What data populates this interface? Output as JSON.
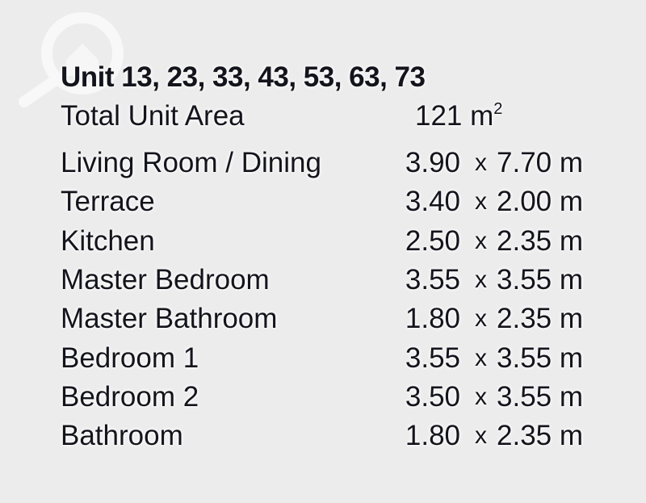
{
  "watermark_icon": "magnifier-house-icon",
  "title": "Unit 13, 23, 33, 43, 53, 63, 73",
  "total": {
    "label": "Total Unit Area",
    "value": "121 m",
    "unit_sup": "2"
  },
  "separator": "x",
  "rooms": [
    {
      "name": "Living Room / Dining",
      "width": "3.90",
      "length": "7.70 m"
    },
    {
      "name": "Terrace",
      "width": "3.40",
      "length": "2.00 m"
    },
    {
      "name": "Kitchen",
      "width": "2.50",
      "length": "2.35 m"
    },
    {
      "name": "Master Bedroom",
      "width": "3.55",
      "length": "3.55 m"
    },
    {
      "name": "Master Bathroom",
      "width": "1.80",
      "length": "2.35 m"
    },
    {
      "name": "Bedroom 1",
      "width": "3.55",
      "length": "3.55 m"
    },
    {
      "name": "Bedroom 2",
      "width": "3.50",
      "length": "3.55 m"
    },
    {
      "name": "Bathroom",
      "width": "1.80",
      "length": "2.35 m"
    }
  ]
}
